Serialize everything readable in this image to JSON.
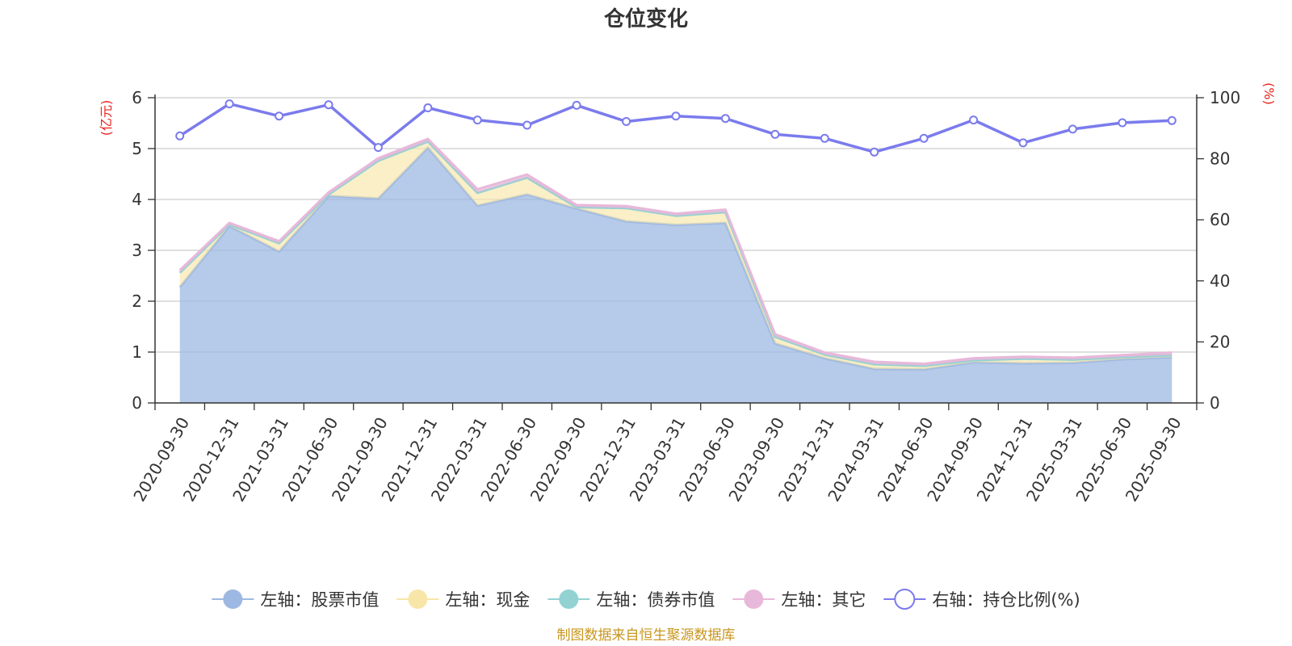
{
  "chart_data": {
    "type": "area",
    "title": "仓位变化",
    "left_unit": "(亿元)",
    "right_unit": "(%)",
    "source": "制图数据来自恒生聚源数据库",
    "x": [
      "2020-09-30",
      "2020-12-31",
      "2021-03-31",
      "2021-06-30",
      "2021-09-30",
      "2021-12-31",
      "2022-03-31",
      "2022-06-30",
      "2022-09-30",
      "2022-12-31",
      "2023-03-31",
      "2023-06-30",
      "2023-09-30",
      "2023-12-31",
      "2024-03-31",
      "2024-06-30",
      "2024-09-30",
      "2024-12-31",
      "2025-03-31",
      "2025-06-30",
      "2025-09-30"
    ],
    "y_left": {
      "min": 0,
      "max": 6,
      "ticks": [
        "0",
        "1",
        "2",
        "3",
        "4",
        "5",
        "6"
      ]
    },
    "y_right": {
      "min": 0,
      "max": 100,
      "ticks": [
        "0",
        "20",
        "40",
        "60",
        "80",
        "100"
      ]
    },
    "stacked_series": [
      {
        "name": "左轴：股票市值",
        "color": "#9db8e2",
        "values": [
          2.28,
          3.48,
          2.98,
          4.07,
          4.02,
          5.02,
          3.88,
          4.1,
          3.82,
          3.57,
          3.5,
          3.54,
          1.17,
          0.88,
          0.67,
          0.66,
          0.8,
          0.78,
          0.79,
          0.86,
          0.9
        ]
      },
      {
        "name": "左轴：现金",
        "color": "#f8e6a9",
        "values": [
          0.28,
          0.03,
          0.16,
          0.03,
          0.74,
          0.12,
          0.25,
          0.33,
          0.03,
          0.26,
          0.18,
          0.21,
          0.13,
          0.07,
          0.09,
          0.07,
          0.04,
          0.09,
          0.06,
          0.04,
          0.04
        ]
      },
      {
        "name": "左轴：债券市值",
        "color": "#92d2d3",
        "values": [
          0,
          0,
          0,
          0,
          0,
          0,
          0,
          0,
          0,
          0,
          0,
          0,
          0,
          0,
          0,
          0,
          0,
          0,
          0,
          0,
          0
        ]
      },
      {
        "name": "左轴：其它",
        "color": "#e8b8da",
        "values": [
          0.05,
          0.03,
          0.04,
          0.04,
          0.05,
          0.05,
          0.07,
          0.06,
          0.04,
          0.04,
          0.04,
          0.05,
          0.05,
          0.04,
          0.05,
          0.04,
          0.04,
          0.04,
          0.04,
          0.04,
          0.05
        ]
      }
    ],
    "line_series": {
      "name": "右轴：持仓比例(%)",
      "color": "#7b7bed",
      "values": [
        87.5,
        98.0,
        94.0,
        97.7,
        83.7,
        96.7,
        92.7,
        91.0,
        97.5,
        92.2,
        94.0,
        93.2,
        88.0,
        86.7,
        82.2,
        86.7,
        92.7,
        85.2,
        89.7,
        91.8,
        92.5
      ]
    },
    "legend_position": "bottom",
    "grid": true
  }
}
